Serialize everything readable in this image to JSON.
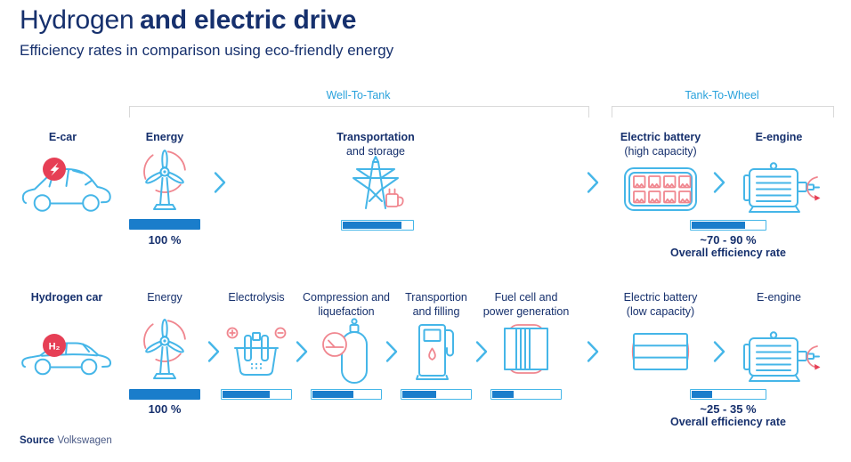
{
  "header": {
    "title_regular": "Hydrogen",
    "title_bold": "and electric drive",
    "subtitle": "Efficiency rates in comparison using eco-friendly energy"
  },
  "brackets": {
    "well_to_tank": "Well-To-Tank",
    "tank_to_wheel": "Tank-To-Wheel"
  },
  "colors": {
    "navy": "#16306d",
    "light_blue": "#45b6e8",
    "label_blue": "#2aa2dc",
    "bar_fill": "#1a7dcb",
    "red": "#e63f55",
    "red_light": "#f0868f",
    "bracket_gray": "#d9d9d9"
  },
  "electric_row": {
    "vehicle_label": "E-car",
    "vehicle_icon": "electric-car-icon",
    "badge_icon": "lightning-icon",
    "steps": [
      {
        "title": "Energy",
        "icon": "wind-turbine-icon",
        "bar_pct": 100,
        "bar_label": "100 %"
      },
      {
        "title": "Transportation",
        "subtitle": "and storage",
        "icon": "power-grid-icon",
        "bar_pct": 84
      },
      {
        "title": "Electric battery",
        "subtitle": "(high capacity)",
        "icon": "battery-high-capacity-icon"
      },
      {
        "title": "E-engine",
        "icon": "electric-motor-icon"
      }
    ],
    "overall": {
      "bar_pct": 73,
      "range": "~70 - 90 %",
      "caption": "Overall efficiency rate"
    }
  },
  "hydrogen_row": {
    "vehicle_label": "Hydrogen car",
    "vehicle_icon": "hydrogen-car-icon",
    "badge": "H₂",
    "steps": [
      {
        "title": "Energy",
        "icon": "wind-turbine-icon",
        "bar_pct": 100,
        "bar_label": "100 %"
      },
      {
        "title": "Electrolysis",
        "icon": "electrolysis-icon",
        "bar_pct": 70
      },
      {
        "title": "Compression and",
        "subtitle": "liquefaction",
        "icon": "gas-cylinder-icon",
        "bar_pct": 60
      },
      {
        "title": "Transportion",
        "subtitle": "and filling",
        "icon": "fuel-pump-icon",
        "bar_pct": 50
      },
      {
        "title": "Fuel cell and",
        "subtitle": "power generation",
        "icon": "fuel-cell-icon",
        "bar_pct": 31
      },
      {
        "title": "Electric battery",
        "subtitle": "(low capacity)",
        "icon": "battery-low-capacity-icon"
      },
      {
        "title": "E-engine",
        "icon": "electric-motor-icon"
      }
    ],
    "overall": {
      "bar_pct": 28,
      "range": "~25 - 35 %",
      "caption": "Overall efficiency rate"
    }
  },
  "source": {
    "label": "Source",
    "value": "Volkswagen"
  },
  "chart_data": {
    "type": "bar",
    "title": "Hydrogen and electric drive — efficiency rates in comparison",
    "series": [
      {
        "name": "E-car",
        "categories": [
          "Energy",
          "Transportation and storage",
          "Overall efficiency rate"
        ],
        "values": [
          100,
          84,
          73
        ],
        "overall_range_label": "~70 - 90 %"
      },
      {
        "name": "Hydrogen car",
        "categories": [
          "Energy",
          "Electrolysis",
          "Compression and liquefaction",
          "Transportion and filling",
          "Fuel cell and power generation",
          "Overall efficiency rate"
        ],
        "values": [
          100,
          70,
          60,
          50,
          31,
          28
        ],
        "overall_range_label": "~25 - 35 %"
      }
    ],
    "unit": "%",
    "ylim": [
      0,
      100
    ]
  }
}
